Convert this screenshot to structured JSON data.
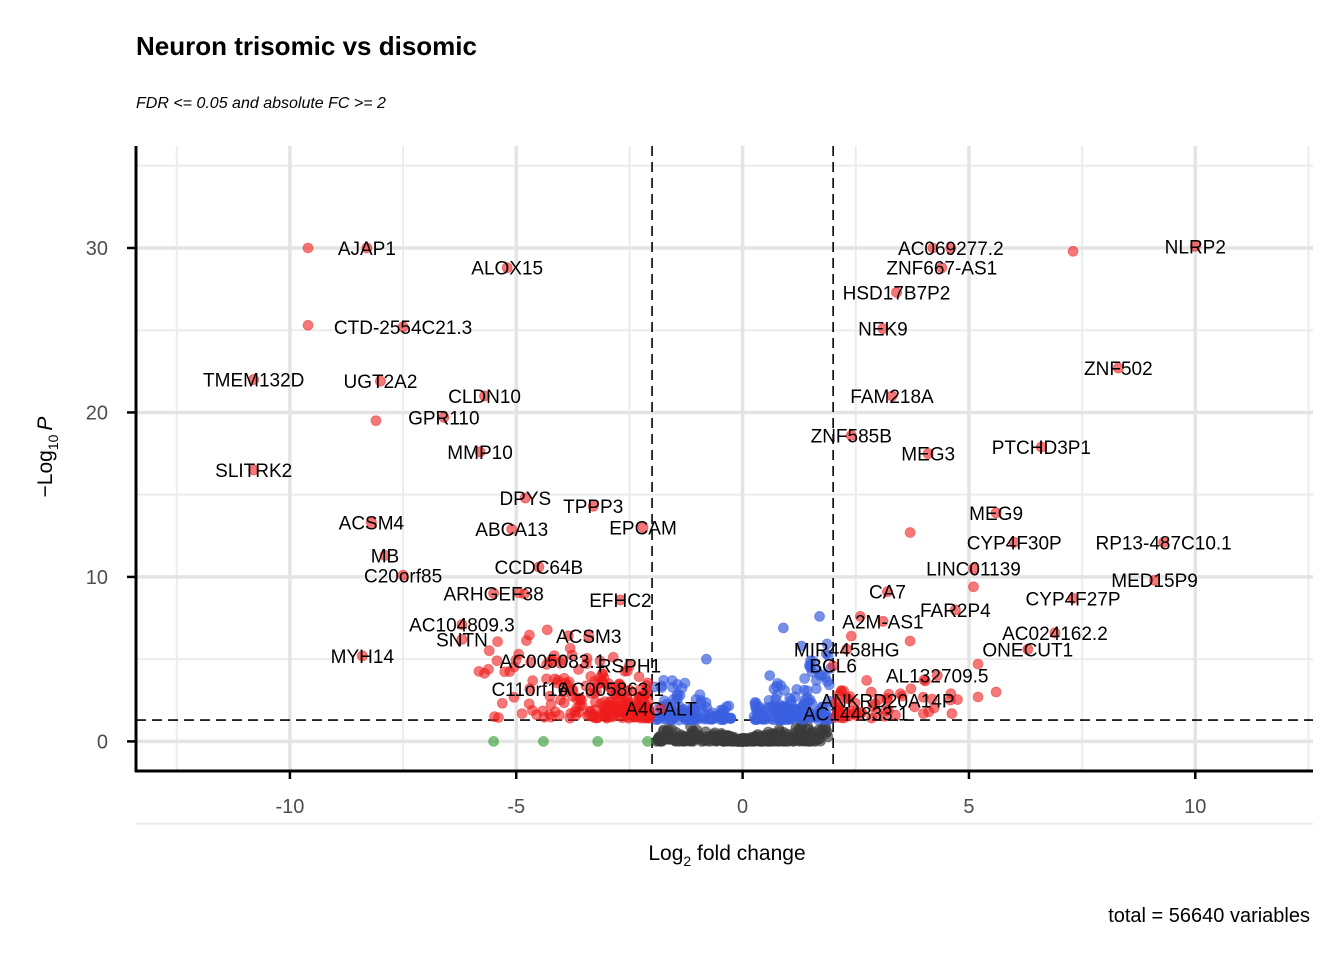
{
  "chart_data": {
    "type": "scatter",
    "title": "Neuron trisomic vs disomic",
    "subtitle": "FDR <= 0.05 and absolute FC >= 2",
    "xlabel": {
      "pre": "Log",
      "sub": "2",
      "post": " fold change"
    },
    "ylabel": {
      "pre": "−Log",
      "sub": "10",
      "post": "P"
    },
    "caption": "total = 56640 variables",
    "xlim": [
      -13.4,
      12.6
    ],
    "ylim": [
      -1.8,
      36.2
    ],
    "x_ticks": [
      -10,
      -5,
      0,
      5,
      10
    ],
    "x_tick_labels": [
      "-10",
      "-5",
      "0",
      "5",
      "10"
    ],
    "y_ticks": [
      0,
      10,
      20,
      30
    ],
    "y_tick_labels": [
      "0",
      "10",
      "20",
      "30"
    ],
    "grid": true,
    "fc_cutoff": 2,
    "p_cutoff": 1.3,
    "colors": {
      "ns": "#3a3a3a",
      "log2fc": "#2f9a2f",
      "p": "#3a5fe0",
      "both": "#ee1c1c"
    },
    "labeled_genes": [
      {
        "label": "AJAP1",
        "x": -8.3,
        "y": 30.0
      },
      {
        "label": "ALOX15",
        "x": -5.2,
        "y": 28.8
      },
      {
        "label": "CTD-2554C21.3",
        "x": -7.5,
        "y": 25.2
      },
      {
        "label": "TMEM132D",
        "x": -10.8,
        "y": 22.0
      },
      {
        "label": "UGT2A2",
        "x": -8.0,
        "y": 21.9
      },
      {
        "label": "CLDN10",
        "x": -5.7,
        "y": 21.0
      },
      {
        "label": "GPR110",
        "x": -6.6,
        "y": 19.7
      },
      {
        "label": "MMP10",
        "x": -5.8,
        "y": 17.6
      },
      {
        "label": "SLITRK2",
        "x": -10.8,
        "y": 16.5
      },
      {
        "label": "DPYS",
        "x": -4.8,
        "y": 14.8
      },
      {
        "label": "TPPP3",
        "x": -3.3,
        "y": 14.3
      },
      {
        "label": "ACSM4",
        "x": -8.2,
        "y": 13.3
      },
      {
        "label": "ABCA13",
        "x": -5.1,
        "y": 12.9
      },
      {
        "label": "EPCAM",
        "x": -2.2,
        "y": 13.0
      },
      {
        "label": "MB",
        "x": -7.9,
        "y": 11.3
      },
      {
        "label": "C20orf85",
        "x": -7.5,
        "y": 10.1
      },
      {
        "label": "CCDC64B",
        "x": -4.5,
        "y": 10.6
      },
      {
        "label": "ARHGEF38",
        "x": -5.5,
        "y": 9.0
      },
      {
        "label": "EFHC2",
        "x": -2.7,
        "y": 8.6
      },
      {
        "label": "AC104809.3",
        "x": -6.2,
        "y": 7.1
      },
      {
        "label": "ACSM3",
        "x": -3.4,
        "y": 6.4
      },
      {
        "label": "SNTN",
        "x": -6.2,
        "y": 6.2
      },
      {
        "label": "MYH14",
        "x": -8.4,
        "y": 5.2
      },
      {
        "label": "AC005083.1",
        "x": -4.2,
        "y": 4.9
      },
      {
        "label": "RSPH1",
        "x": -2.5,
        "y": 4.6
      },
      {
        "label": "C11orf16",
        "x": -4.7,
        "y": 3.2
      },
      {
        "label": "AC005863.1",
        "x": -2.9,
        "y": 3.2
      },
      {
        "label": "A4GALT",
        "x": -1.8,
        "y": 2.0
      },
      {
        "label": "AC069277.2",
        "x": 4.6,
        "y": 30.0
      },
      {
        "label": "NLRP2",
        "x": 10.0,
        "y": 30.1
      },
      {
        "label": "ZNF667-AS1",
        "x": 4.4,
        "y": 28.8
      },
      {
        "label": "HSD17B7P2",
        "x": 3.4,
        "y": 27.3
      },
      {
        "label": "NEK9",
        "x": 3.1,
        "y": 25.1
      },
      {
        "label": "ZNF502",
        "x": 8.3,
        "y": 22.7
      },
      {
        "label": "FAM218A",
        "x": 3.3,
        "y": 21.0
      },
      {
        "label": "ZNF585B",
        "x": 2.4,
        "y": 18.6
      },
      {
        "label": "MEG3",
        "x": 4.1,
        "y": 17.5
      },
      {
        "label": "PTCHD3P1",
        "x": 6.6,
        "y": 17.9
      },
      {
        "label": "MEG9",
        "x": 5.6,
        "y": 13.9
      },
      {
        "label": "CYP4F30P",
        "x": 6.0,
        "y": 12.1
      },
      {
        "label": "RP13-487C10.1",
        "x": 9.3,
        "y": 12.1
      },
      {
        "label": "LINC01139",
        "x": 5.1,
        "y": 10.5
      },
      {
        "label": "MED15P9",
        "x": 9.1,
        "y": 9.8
      },
      {
        "label": "CA7",
        "x": 3.2,
        "y": 9.1
      },
      {
        "label": "CYP4F27P",
        "x": 7.3,
        "y": 8.7
      },
      {
        "label": "FAR2P4",
        "x": 4.7,
        "y": 8.0
      },
      {
        "label": "A2M-AS1",
        "x": 3.1,
        "y": 7.3
      },
      {
        "label": "AC024162.2",
        "x": 6.9,
        "y": 6.6
      },
      {
        "label": "MIR4458HG",
        "x": 2.3,
        "y": 5.6
      },
      {
        "label": "ONECUT1",
        "x": 6.3,
        "y": 5.6
      },
      {
        "label": "BCL6",
        "x": 2.0,
        "y": 4.6
      },
      {
        "label": "AL132709.5",
        "x": 4.3,
        "y": 4.0
      },
      {
        "label": "ANKRD20A14P",
        "x": 3.2,
        "y": 2.5
      },
      {
        "label": "AC144833.1",
        "x": 2.5,
        "y": 1.7
      }
    ],
    "extra_red_points": [
      {
        "x": -9.6,
        "y": 30.0
      },
      {
        "x": -9.6,
        "y": 25.3
      },
      {
        "x": -8.1,
        "y": 19.5
      },
      {
        "x": 4.2,
        "y": 30.0
      },
      {
        "x": 7.3,
        "y": 29.8
      },
      {
        "x": 3.7,
        "y": 12.7
      },
      {
        "x": 5.1,
        "y": 9.4
      },
      {
        "x": 5.2,
        "y": 4.7
      },
      {
        "x": 5.6,
        "y": 3.0
      },
      {
        "x": 5.2,
        "y": 2.7
      },
      {
        "x": 4.6,
        "y": 2.9
      },
      {
        "x": 3.8,
        "y": 2.1
      },
      {
        "x": 3.7,
        "y": 6.1
      },
      {
        "x": 2.4,
        "y": 6.4
      },
      {
        "x": 2.6,
        "y": 7.6
      }
    ],
    "green_points": [
      {
        "x": -5.5,
        "y": 0.0
      },
      {
        "x": -4.4,
        "y": 0.0
      },
      {
        "x": -3.2,
        "y": 0.0
      },
      {
        "x": -2.1,
        "y": 0.0
      }
    ]
  }
}
